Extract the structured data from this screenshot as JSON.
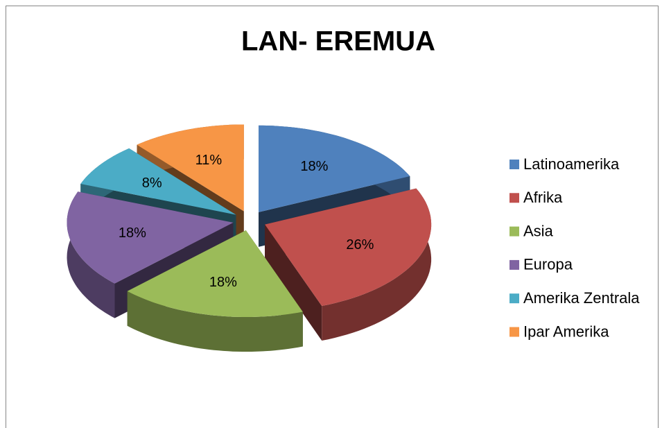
{
  "chart_data": {
    "type": "pie3d",
    "title": "LAN- EREMUA",
    "categories": [
      "Latinoamerika",
      "Afrika",
      "Asia",
      "Europa",
      "Amerika Zentrala",
      "Ipar Amerika"
    ],
    "values": [
      18,
      26,
      18,
      18,
      8,
      11
    ],
    "value_labels": [
      "18%",
      "26%",
      "18%",
      "18%",
      "8%",
      "11%"
    ],
    "colors": [
      "#4f81bd",
      "#c0504d",
      "#9bbb59",
      "#8064a2",
      "#4bacc6",
      "#f79646"
    ],
    "legend": "right"
  }
}
